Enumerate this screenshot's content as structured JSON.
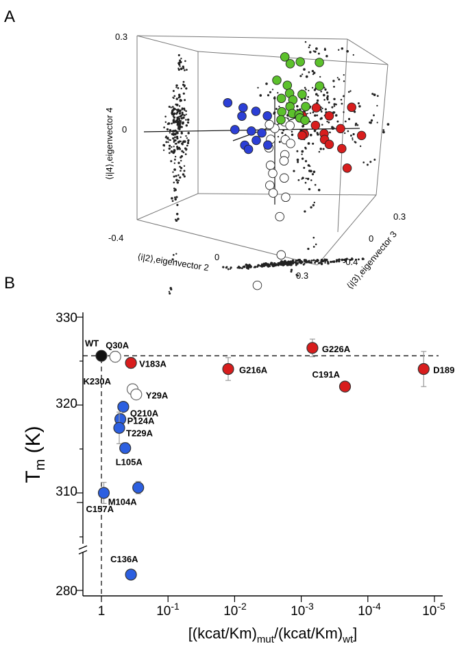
{
  "panel_labels": {
    "a": "A",
    "b": "B"
  },
  "chart_data": [
    {
      "type": "scatter",
      "panel": "A",
      "title": "",
      "view": "3d-box",
      "axes": {
        "x": {
          "label": "⟨i|2⟩,eigenvector 2",
          "ticks": [
            "-0.4",
            "0",
            "0.3"
          ],
          "range": [
            -0.4,
            0.3
          ]
        },
        "y": {
          "label": "⟨i|3⟩,eigenvector 3",
          "ticks": [
            "0.3",
            "0",
            "-0.4"
          ],
          "range": [
            -0.4,
            0.3
          ]
        },
        "z": {
          "label": "⟨i|4⟩,eigenvector 4",
          "ticks": [
            "0.3",
            "0"
          ],
          "range": [
            -0.4,
            0.3
          ]
        }
      },
      "colors": {
        "green": "#5cc12c",
        "blue": "#2c3fd6",
        "red": "#d81d1d",
        "white": "#ffffff",
        "projection": "#222222"
      },
      "series": [
        {
          "name": "green",
          "points": [
            [
              0.02,
              0.05,
              0.22
            ],
            [
              0.05,
              0.03,
              0.2
            ],
            [
              0.07,
              0.08,
              0.2
            ],
            [
              0.0,
              0.02,
              0.15
            ],
            [
              0.03,
              0.05,
              0.13
            ],
            [
              0.06,
              0.0,
              0.11
            ],
            [
              0.09,
              0.05,
              0.1
            ],
            [
              0.01,
              0.04,
              0.09
            ],
            [
              0.04,
              0.08,
              0.08
            ],
            [
              0.07,
              -0.02,
              0.07
            ],
            [
              0.1,
              0.06,
              0.06
            ],
            [
              0.02,
              0.02,
              0.05
            ],
            [
              0.05,
              0.05,
              0.04
            ],
            [
              0.09,
              0.02,
              0.04
            ],
            [
              0.16,
              0.05,
              0.2
            ],
            [
              0.14,
              0.1,
              0.12
            ],
            [
              0.0,
              0.06,
              0.02
            ],
            [
              0.06,
              0.1,
              0.02
            ],
            [
              0.11,
              0.03,
              0.02
            ]
          ]
        },
        {
          "name": "blue",
          "points": [
            [
              -0.17,
              -0.05,
              0.09
            ],
            [
              -0.12,
              -0.02,
              0.07
            ],
            [
              -0.1,
              -0.08,
              0.05
            ],
            [
              -0.06,
              -0.04,
              0.06
            ],
            [
              -0.03,
              0.0,
              0.04
            ],
            [
              -0.12,
              -0.1,
              0.01
            ],
            [
              -0.07,
              -0.06,
              0.0
            ],
            [
              -0.04,
              -0.03,
              -0.01
            ],
            [
              -0.08,
              -0.1,
              -0.04
            ],
            [
              -0.05,
              -0.06,
              -0.03
            ],
            [
              -0.02,
              -0.02,
              -0.05
            ],
            [
              -0.09,
              -0.04,
              -0.06
            ]
          ]
        },
        {
          "name": "red",
          "points": [
            [
              0.12,
              -0.02,
              0.04
            ],
            [
              0.16,
              0.02,
              0.06
            ],
            [
              0.2,
              0.05,
              0.03
            ],
            [
              0.27,
              0.1,
              0.05
            ],
            [
              0.14,
              0.06,
              0.0
            ],
            [
              0.2,
              0.0,
              -0.02
            ],
            [
              0.25,
              0.04,
              -0.01
            ],
            [
              0.31,
              0.1,
              -0.04
            ],
            [
              0.16,
              0.1,
              -0.05
            ],
            [
              0.2,
              0.05,
              -0.06
            ],
            [
              0.23,
              0.1,
              -0.08
            ],
            [
              0.26,
              0.08,
              -0.14
            ],
            [
              0.12,
              0.0,
              -0.02
            ],
            [
              0.09,
              0.05,
              -0.03
            ]
          ]
        },
        {
          "name": "white",
          "points": [
            [
              0.0,
              0.0,
              0.0
            ],
            [
              0.04,
              0.0,
              0.02
            ],
            [
              -0.03,
              0.02,
              0.01
            ],
            [
              0.07,
              -0.02,
              0.01
            ],
            [
              0.0,
              -0.04,
              -0.03
            ],
            [
              0.03,
              0.03,
              -0.04
            ],
            [
              0.06,
              0.01,
              -0.05
            ],
            [
              -0.02,
              -0.01,
              -0.06
            ],
            [
              0.02,
              0.05,
              -0.09
            ],
            [
              0.05,
              -0.03,
              -0.1
            ],
            [
              -0.03,
              0.03,
              -0.12
            ],
            [
              0.0,
              -0.02,
              -0.14
            ],
            [
              0.03,
              0.02,
              -0.16
            ],
            [
              -0.02,
              0.0,
              -0.18
            ],
            [
              0.01,
              -0.04,
              -0.2
            ],
            [
              0.04,
              0.01,
              -0.22
            ],
            [
              0.02,
              0.0,
              -0.28
            ],
            [
              0.03,
              -0.01,
              -0.4
            ],
            [
              -0.05,
              -0.05,
              -0.49
            ]
          ]
        }
      ]
    },
    {
      "type": "scatter",
      "panel": "B",
      "title": "",
      "xlabel_parts": {
        "pre": "[(kcat/Km)",
        "sub1": "mut",
        "mid": "/(kcat/Km)",
        "sub2": "wt",
        "post": "]"
      },
      "ylabel": {
        "main": "T",
        "sub": "m",
        "unit": " (K)"
      },
      "x_scale": "log, reversed",
      "xlim": [
        2.0,
        8.3e-06
      ],
      "x_ticks": [
        {
          "value": 1,
          "label": "1"
        },
        {
          "value": 0.1,
          "label": "10",
          "exp": "-1"
        },
        {
          "value": 0.01,
          "label": "10",
          "exp": "-2"
        },
        {
          "value": 0.001,
          "label": "10",
          "exp": "-3"
        },
        {
          "value": 0.0001,
          "label": "10",
          "exp": "-4"
        },
        {
          "value": 1e-05,
          "label": "10",
          "exp": "-5"
        }
      ],
      "y_axis": "broken between 305 and 284",
      "y_ticks": [
        "330",
        "320",
        "310",
        "280"
      ],
      "ylim": [
        279.5,
        330.5
      ],
      "reference_lines": {
        "vertical_x": 1,
        "horizontal_y": 325.6
      },
      "colors": {
        "black": "#111111",
        "white": "#ffffff",
        "red": "#d81d1d",
        "blue": "#2c5fe0"
      },
      "points": [
        {
          "label": "WT",
          "x": 1,
          "y": 325.6,
          "group": "black"
        },
        {
          "label": "Q30A",
          "x": 0.62,
          "y": 325.5,
          "group": "white",
          "err": 0.6
        },
        {
          "label": "V183A",
          "x": 0.36,
          "y": 324.8,
          "group": "red",
          "err": 0.6
        },
        {
          "label": "G216A",
          "x": 0.0125,
          "y": 324.1,
          "group": "red",
          "err": 1.3
        },
        {
          "label": "G226A",
          "x": 0.00068,
          "y": 326.5,
          "group": "red",
          "err": 1.0
        },
        {
          "label": "C191A",
          "x": 0.00022,
          "y": 322.1,
          "group": "red",
          "err": 0.5
        },
        {
          "label": "D189",
          "x": 1.45e-05,
          "y": 324.1,
          "group": "red",
          "err": 2.0
        },
        {
          "label": "K230A",
          "x": 0.34,
          "y": 321.8,
          "group": "white",
          "err": 0.5
        },
        {
          "label": "Y29A",
          "x": 0.3,
          "y": 321.2,
          "group": "white",
          "err": 0.5
        },
        {
          "label": "Q210A",
          "x": 0.47,
          "y": 319.8,
          "group": "blue",
          "err": 0.5
        },
        {
          "label": "P124A",
          "x": 0.52,
          "y": 318.4,
          "group": "blue",
          "err": 0.6
        },
        {
          "label": "T229A",
          "x": 0.54,
          "y": 317.4,
          "group": "blue",
          "err": 1.8
        },
        {
          "label": "L105A",
          "x": 0.44,
          "y": 315.1,
          "group": "blue",
          "err": 0.6
        },
        {
          "label": "C157A",
          "x": 0.92,
          "y": 310.0,
          "group": "blue",
          "err": 1.2
        },
        {
          "label": "M104A",
          "x": 0.28,
          "y": 310.6,
          "group": "blue",
          "err": 0.7
        },
        {
          "label": "C136A",
          "x": 0.36,
          "y": 281.8,
          "group": "blue",
          "err": 0.3
        }
      ]
    }
  ]
}
